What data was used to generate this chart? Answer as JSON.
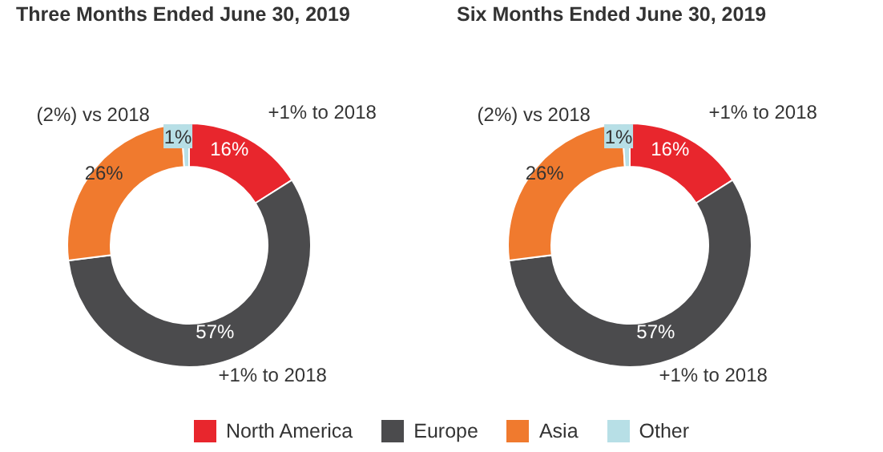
{
  "chart_data": [
    {
      "type": "donut",
      "title": "Three Months Ended June 30, 2019",
      "categories": [
        "North America",
        "Europe",
        "Asia",
        "Other"
      ],
      "values": [
        16,
        57,
        26,
        1
      ],
      "value_labels": [
        "16%",
        "57%",
        "26%",
        "1%"
      ],
      "colors": [
        "#e8262d",
        "#4b4b4d",
        "#f07a2e",
        "#b7dfe6"
      ],
      "legend": "bottom",
      "annotations": [
        {
          "text": "+1% to 2018",
          "x": "North America"
        },
        {
          "text": "+1% to 2018",
          "x": "Europe"
        },
        {
          "text": "(2%) vs 2018",
          "x": "Asia"
        }
      ]
    },
    {
      "type": "donut",
      "title": "Six Months Ended June 30, 2019",
      "categories": [
        null,
        null,
        null,
        null
      ],
      "values": [
        16,
        57,
        26,
        1
      ],
      "value_labels": [
        "16%",
        "57%",
        "26%",
        "1%"
      ],
      "colors": [
        "#e8262d",
        "#4b4b4d",
        "#f07a2e",
        "#b7dfe6"
      ],
      "annotations": [
        {
          "text": "+1% to 2018",
          "x": "North America"
        },
        {
          "text": "+1% to 2018",
          "x": "Europe"
        },
        {
          "text": "(2%) vs 2018",
          "x": "Asia"
        }
      ]
    }
  ]
}
